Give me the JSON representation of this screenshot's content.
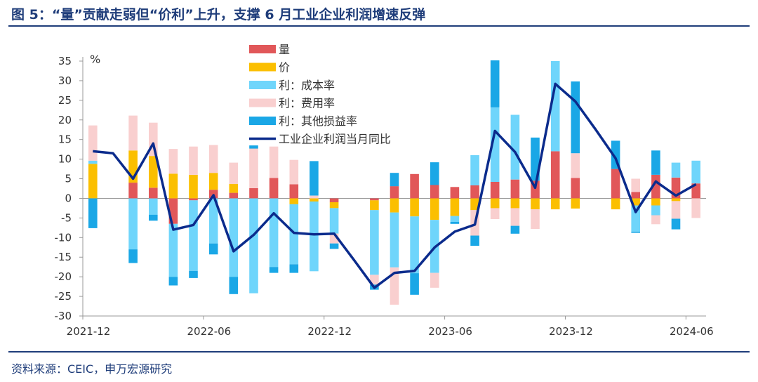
{
  "header": {
    "title": "图 5：“量”贡献走弱但“价利”上升，支撑 6 月工业企业利润增速反弹"
  },
  "footer": {
    "source": "资料来源：CEIC，申万宏源研究"
  },
  "colors": {
    "title": "#1f3d7a",
    "vol": "#e15759",
    "price": "#fbbf00",
    "cost": "#6fd5fb",
    "fee": "#f9cfcf",
    "other": "#1aa7e6",
    "line": "#0b2b8c"
  },
  "chart_data": {
    "type": "bar",
    "subtype": "stacked-bar-with-line",
    "ylabel": "%",
    "ylim": [
      -30,
      35
    ],
    "yticks": [
      -30,
      -25,
      -20,
      -15,
      -10,
      -5,
      0,
      5,
      10,
      15,
      20,
      25,
      30,
      35
    ],
    "x_tick_labels": [
      {
        "index": 0,
        "label": "2021-12"
      },
      {
        "index": 6,
        "label": "2022-06"
      },
      {
        "index": 12,
        "label": "2022-12"
      },
      {
        "index": 18,
        "label": "2023-06"
      },
      {
        "index": 24,
        "label": "2023-12"
      },
      {
        "index": 30,
        "label": "2024-06"
      }
    ],
    "legend_position": "top-center",
    "series": [
      {
        "name": "量",
        "key": "vol",
        "values": [
          0,
          null,
          4,
          2.7,
          -6.5,
          -0.5,
          2.2,
          1.4,
          2.6,
          5.2,
          3.6,
          0,
          -1,
          null,
          -0.5,
          3.1,
          6.2,
          3.4,
          2.9,
          3.3,
          4.2,
          4.8,
          4.5,
          12,
          5.2,
          null,
          7.5,
          1.6,
          6,
          5.3,
          3.8
        ]
      },
      {
        "name": "价",
        "key": "price",
        "values": [
          8.8,
          null,
          8.2,
          8.1,
          6.3,
          6,
          4.3,
          2.3,
          0,
          0,
          -1.5,
          -0.8,
          -1.5,
          null,
          -2.5,
          -3.6,
          -4.6,
          -5.5,
          -4.5,
          -3,
          -2.5,
          -2.5,
          -2.8,
          -2.8,
          -2.6,
          null,
          -2.8,
          -1.8,
          -1.8,
          -0.7,
          0
        ]
      },
      {
        "name": "利：成本率",
        "key": "cost",
        "values": [
          0.8,
          null,
          -13,
          -4.2,
          -13.5,
          -18,
          -11.5,
          -20,
          -24.2,
          -17.5,
          -15.3,
          -17.8,
          -6.5,
          null,
          -16.5,
          -14,
          -14.5,
          -13.5,
          -1.5,
          7.7,
          19,
          16.5,
          0,
          23,
          0,
          null,
          0,
          -6.7,
          -2.5,
          3.8,
          5.8
        ]
      },
      {
        "name": "利：费用率",
        "key": "fee",
        "values": [
          9,
          null,
          8.9,
          8.5,
          6.3,
          7.2,
          7.1,
          5.4,
          10.1,
          8,
          6.2,
          0.7,
          -2.5,
          null,
          -2.5,
          -9.5,
          0,
          -3.8,
          0,
          -6.5,
          -2.8,
          -4.5,
          -5,
          0,
          6.3,
          null,
          0,
          3.4,
          -2.3,
          -4.5,
          -5
        ]
      },
      {
        "name": "利：其他损益率",
        "key": "other",
        "values": [
          -7.6,
          null,
          -3.5,
          -1.5,
          -2.2,
          -1.8,
          -2.8,
          -4.4,
          0.8,
          -1.5,
          -2.2,
          8.8,
          -1.4,
          null,
          -1.3,
          3.4,
          -5.5,
          5.8,
          -0.5,
          -2.6,
          12,
          -2,
          11,
          0,
          18.3,
          null,
          7.2,
          -0.3,
          6.2,
          -2.7,
          0
        ]
      },
      {
        "name": "工业企业利润当月同比",
        "key": "line",
        "values": [
          12,
          11.5,
          5,
          14,
          -8,
          -6.8,
          0.8,
          -13.5,
          -9.3,
          -3.8,
          -8.8,
          -9.2,
          -9,
          -15.8,
          -22.8,
          -19,
          -18.5,
          -12.5,
          -8.5,
          -6.7,
          17.2,
          11.8,
          2.7,
          29.2,
          24.7,
          17.6,
          10.2,
          -3.5,
          4.3,
          0.7,
          3.6
        ]
      }
    ]
  }
}
